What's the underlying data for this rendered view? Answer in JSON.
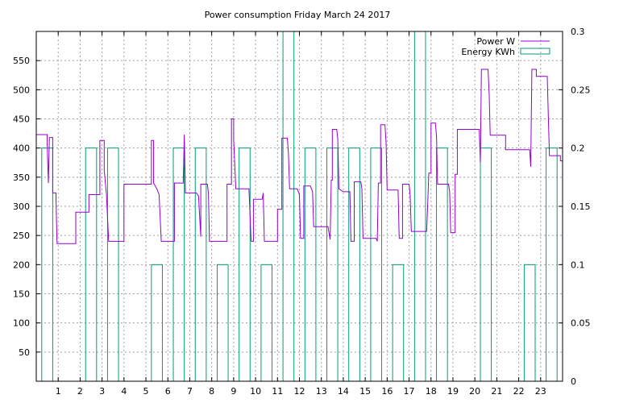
{
  "chart_data": {
    "type": "line",
    "title": "Power consumption Friday March 24 2017",
    "x_ticks": [
      "1",
      "2",
      "3",
      "4",
      "5",
      "6",
      "7",
      "8",
      "9",
      "10",
      "11",
      "12",
      "13",
      "14",
      "15",
      "16",
      "17",
      "18",
      "19",
      "20",
      "21",
      "22",
      "23"
    ],
    "y_ticks": [
      "50",
      "100",
      "150",
      "200",
      "250",
      "300",
      "350",
      "400",
      "450",
      "500",
      "550"
    ],
    "y2_ticks": [
      "0",
      "0.05",
      "0.1",
      "0.15",
      "0.2",
      "0.25",
      "0.3"
    ],
    "xlim": [
      0,
      24
    ],
    "ylim": [
      0,
      600
    ],
    "y2lim": [
      0,
      0.3
    ],
    "grid": true,
    "legend_position": "top-right",
    "colors": {
      "power": "#9400d3",
      "energy": "#009e73"
    },
    "series": [
      {
        "name": "Power W",
        "axis": "left",
        "style": "steps",
        "points": [
          [
            0,
            423
          ],
          [
            0.5,
            423
          ],
          [
            0.5,
            405
          ],
          [
            0.55,
            340
          ],
          [
            0.6,
            418
          ],
          [
            0.75,
            418
          ],
          [
            0.75,
            323
          ],
          [
            0.9,
            323
          ],
          [
            0.9,
            312
          ],
          [
            0.95,
            236
          ],
          [
            1.8,
            236
          ],
          [
            1.8,
            290
          ],
          [
            2.4,
            290
          ],
          [
            2.4,
            320
          ],
          [
            2.9,
            320
          ],
          [
            2.9,
            413
          ],
          [
            3.1,
            413
          ],
          [
            3.1,
            362
          ],
          [
            3.2,
            320
          ],
          [
            3.3,
            240
          ],
          [
            4.0,
            240
          ],
          [
            4.0,
            338
          ],
          [
            5.0,
            338
          ],
          [
            5.25,
            338
          ],
          [
            5.25,
            413
          ],
          [
            5.35,
            413
          ],
          [
            5.35,
            340
          ],
          [
            5.5,
            330
          ],
          [
            5.6,
            320
          ],
          [
            5.7,
            240
          ],
          [
            6.3,
            240
          ],
          [
            6.3,
            340
          ],
          [
            6.7,
            340
          ],
          [
            6.75,
            423
          ],
          [
            6.8,
            323
          ],
          [
            7.3,
            323
          ],
          [
            7.4,
            318
          ],
          [
            7.5,
            248
          ],
          [
            7.5,
            338
          ],
          [
            7.8,
            338
          ],
          [
            7.85,
            323
          ],
          [
            7.9,
            240
          ],
          [
            8.7,
            240
          ],
          [
            8.7,
            338
          ],
          [
            8.9,
            338
          ],
          [
            8.9,
            450
          ],
          [
            9.0,
            450
          ],
          [
            9.0,
            415
          ],
          [
            9.1,
            330
          ],
          [
            9.7,
            330
          ],
          [
            9.8,
            240
          ],
          [
            9.9,
            240
          ],
          [
            9.9,
            312
          ],
          [
            10.3,
            312
          ],
          [
            10.35,
            323
          ],
          [
            10.4,
            240
          ],
          [
            11.0,
            240
          ],
          [
            11.0,
            295
          ],
          [
            11.2,
            295
          ],
          [
            11.2,
            417
          ],
          [
            11.45,
            417
          ],
          [
            11.5,
            390
          ],
          [
            11.55,
            330
          ],
          [
            11.9,
            330
          ],
          [
            12.0,
            320
          ],
          [
            12.05,
            245
          ],
          [
            12.2,
            245
          ],
          [
            12.2,
            335
          ],
          [
            12.5,
            335
          ],
          [
            12.6,
            325
          ],
          [
            12.65,
            265
          ],
          [
            13.3,
            265
          ],
          [
            13.4,
            243
          ],
          [
            13.45,
            345
          ],
          [
            13.5,
            345
          ],
          [
            13.5,
            432
          ],
          [
            13.7,
            432
          ],
          [
            13.75,
            415
          ],
          [
            13.8,
            330
          ],
          [
            14.0,
            325
          ],
          [
            14.3,
            325
          ],
          [
            14.35,
            240
          ],
          [
            14.5,
            240
          ],
          [
            14.5,
            342
          ],
          [
            14.8,
            342
          ],
          [
            14.85,
            330
          ],
          [
            14.9,
            245
          ],
          [
            15.5,
            245
          ],
          [
            15.55,
            240
          ],
          [
            15.6,
            340
          ],
          [
            15.7,
            340
          ],
          [
            15.7,
            440
          ],
          [
            15.9,
            440
          ],
          [
            15.95,
            410
          ],
          [
            16.0,
            328
          ],
          [
            16.5,
            328
          ],
          [
            16.55,
            245
          ],
          [
            16.7,
            245
          ],
          [
            16.7,
            338
          ],
          [
            17.0,
            338
          ],
          [
            17.05,
            320
          ],
          [
            17.1,
            257
          ],
          [
            17.8,
            257
          ],
          [
            17.85,
            305
          ],
          [
            17.9,
            357
          ],
          [
            18.0,
            357
          ],
          [
            18.0,
            443
          ],
          [
            18.2,
            443
          ],
          [
            18.25,
            420
          ],
          [
            18.3,
            338
          ],
          [
            18.8,
            338
          ],
          [
            18.85,
            325
          ],
          [
            18.9,
            255
          ],
          [
            19.1,
            255
          ],
          [
            19.1,
            355
          ],
          [
            19.2,
            355
          ],
          [
            19.2,
            432
          ],
          [
            20.2,
            432
          ],
          [
            20.25,
            375
          ],
          [
            20.3,
            535
          ],
          [
            20.6,
            535
          ],
          [
            20.65,
            495
          ],
          [
            20.7,
            422
          ],
          [
            21.4,
            422
          ],
          [
            21.4,
            397
          ],
          [
            22.5,
            397
          ],
          [
            22.55,
            368
          ],
          [
            22.6,
            535
          ],
          [
            22.8,
            535
          ],
          [
            22.8,
            523
          ],
          [
            23.3,
            523
          ],
          [
            23.35,
            455
          ],
          [
            23.4,
            387
          ],
          [
            23.9,
            387
          ],
          [
            23.9,
            378
          ],
          [
            24,
            378
          ]
        ]
      },
      {
        "name": "Energy KWh",
        "axis": "right",
        "style": "bars",
        "bars": [
          [
            0,
            0.2
          ],
          [
            1,
            0
          ],
          [
            2,
            0.2
          ],
          [
            3,
            0.2
          ],
          [
            4,
            0
          ],
          [
            5,
            0.1
          ],
          [
            6,
            0.2
          ],
          [
            7,
            0.2
          ],
          [
            8,
            0.1
          ],
          [
            9,
            0.2
          ],
          [
            10,
            0.1
          ],
          [
            11,
            0.3
          ],
          [
            12,
            0.2
          ],
          [
            13,
            0.2
          ],
          [
            14,
            0.2
          ],
          [
            15,
            0.2
          ],
          [
            16,
            0.1
          ],
          [
            17,
            0.3
          ],
          [
            18,
            0.2
          ],
          [
            19,
            0
          ],
          [
            20,
            0.2
          ],
          [
            21,
            0
          ],
          [
            22,
            0.1
          ],
          [
            23,
            0.2
          ]
        ]
      }
    ]
  }
}
